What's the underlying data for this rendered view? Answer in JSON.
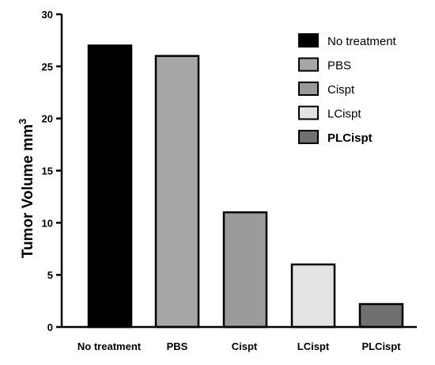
{
  "chart_data": {
    "type": "bar",
    "categories": [
      "No treatment",
      "PBS",
      "Cispt",
      "LCispt",
      "PLCispt"
    ],
    "values": [
      27,
      26,
      11,
      6,
      2.2
    ],
    "colors": [
      "#000000",
      "#a6a6a6",
      "#9a9a9a",
      "#e3e3e3",
      "#707070"
    ],
    "ylabel": "Tumor Volume mm",
    "ylabel_superscript": "3",
    "xlabel": "",
    "title": "",
    "ylim": [
      0,
      30
    ],
    "yticks": [
      0,
      5,
      10,
      15,
      20,
      25,
      30
    ],
    "grid": false,
    "legend": {
      "placement": "top-right",
      "entries": [
        {
          "label": "No treatment",
          "color": "#000000",
          "bold": false
        },
        {
          "label": "PBS",
          "color": "#a6a6a6",
          "bold": false
        },
        {
          "label": "Cispt",
          "color": "#9a9a9a",
          "bold": false
        },
        {
          "label": "LCispt",
          "color": "#e3e3e3",
          "bold": false
        },
        {
          "label": "PLCispt",
          "color": "#707070",
          "bold": true
        }
      ]
    }
  }
}
